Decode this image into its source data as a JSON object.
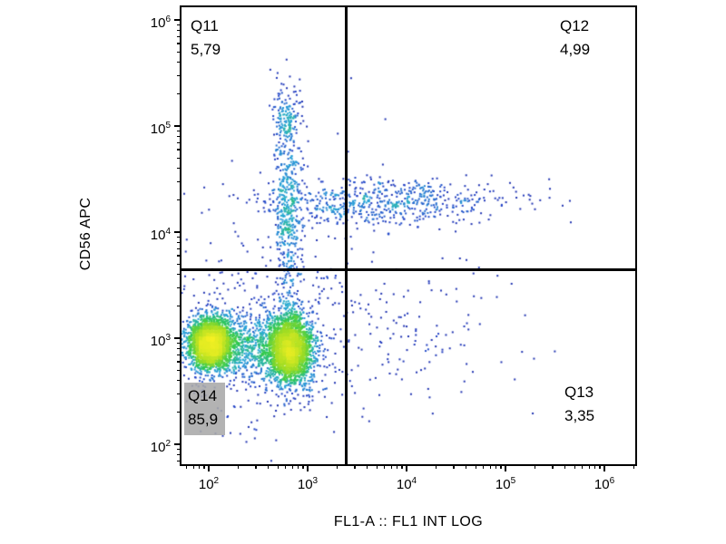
{
  "chart_data": {
    "type": "scatter",
    "subtype": "flow-cytometry-pseudocolor-density-dot-plot",
    "title": "",
    "xlabel": "FL1-A :: FL1 INT LOG",
    "ylabel": "CD56 APC",
    "x_scale": "log",
    "y_scale": "log",
    "x_range_log10": [
      1.7248,
      6.3119
    ],
    "y_range_log10": [
      1.812,
      6.1197
    ],
    "tick_base": "10",
    "x_ticks_exponents": [
      2,
      3,
      4,
      5,
      6
    ],
    "y_ticks_exponents": [
      2,
      3,
      4,
      5,
      6
    ],
    "grid": false,
    "background": "#ffffff",
    "axis_color": "#000000",
    "gate_color": "#000000",
    "gates": {
      "x_value": 2470,
      "y_value": 4380
    },
    "quadrants": [
      {
        "id": "Q11",
        "label": "Q11",
        "value": "5,79",
        "percent": 5.79,
        "position": "top-left",
        "highlight": false
      },
      {
        "id": "Q12",
        "label": "Q12",
        "value": "4,99",
        "percent": 4.99,
        "position": "top-right",
        "highlight": false
      },
      {
        "id": "Q13",
        "label": "Q13",
        "value": "3,35",
        "percent": 3.35,
        "position": "bottom-right",
        "highlight": false
      },
      {
        "id": "Q14",
        "label": "Q14",
        "value": "85,9",
        "percent": 85.9,
        "position": "bottom-left",
        "highlight": true
      }
    ],
    "density_palette": [
      {
        "t": 0.0,
        "color": "#1f1f8f"
      },
      {
        "t": 0.25,
        "color": "#2443c8"
      },
      {
        "t": 0.45,
        "color": "#28a8d8"
      },
      {
        "t": 0.62,
        "color": "#2ec850"
      },
      {
        "t": 0.8,
        "color": "#9fdc24"
      },
      {
        "t": 1.0,
        "color": "#f4f024"
      }
    ],
    "populations": [
      {
        "name": "cd56neg-cluster-low-fl1",
        "n": 2600,
        "mean": [
          2.02,
          2.95
        ],
        "sigma": [
          0.11,
          0.12
        ]
      },
      {
        "name": "cd56neg-cluster-mid-fl1",
        "n": 2600,
        "mean": [
          2.82,
          2.9
        ],
        "sigma": [
          0.11,
          0.16
        ]
      },
      {
        "name": "cd56neg-bridge",
        "n": 700,
        "mean": [
          2.42,
          2.93
        ],
        "sigma": [
          0.28,
          0.16
        ]
      },
      {
        "name": "background-scatter",
        "n": 450,
        "mean": [
          2.5,
          3.0
        ],
        "sigma": [
          0.5,
          0.45
        ]
      },
      {
        "name": "cd56pos-vertical-streak",
        "n": 500,
        "mean": [
          2.8,
          4.25
        ],
        "sigma": [
          0.07,
          0.5
        ]
      },
      {
        "name": "cd56bright-top-cluster",
        "n": 110,
        "mean": [
          2.81,
          5.08
        ],
        "sigma": [
          0.06,
          0.13
        ]
      },
      {
        "name": "cd56pos-fl1-band",
        "n": 640,
        "mean": [
          3.75,
          4.28
        ],
        "sigma": [
          0.65,
          0.11
        ]
      },
      {
        "name": "q13-sparse",
        "n": 130,
        "mean": [
          3.95,
          3.05
        ],
        "sigma": [
          0.55,
          0.3
        ]
      },
      {
        "name": "rare-uniform",
        "n": 60,
        "mean": [
          3.6,
          3.9
        ],
        "sigma": [
          1.05,
          0.95
        ]
      }
    ]
  }
}
